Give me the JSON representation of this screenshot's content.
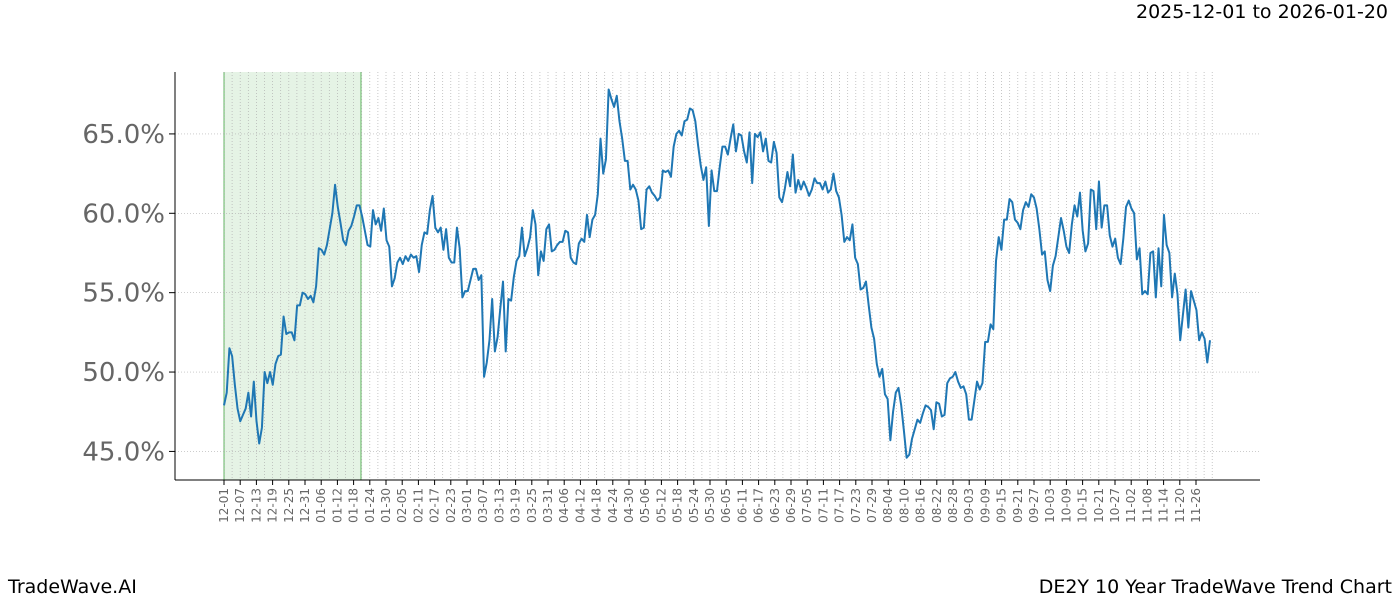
{
  "header": {
    "date_range": "2025-12-01 to 2026-01-20"
  },
  "footer": {
    "brand": "TradeWave.AI",
    "chart_title": "DE2Y 10 Year TradeWave Trend Chart"
  },
  "colors": {
    "line": "#1f77b4",
    "highlight": "#2ca02c",
    "grid": "#b0b0b0",
    "axis": "#000000",
    "tick_text": "#666666"
  },
  "chart_data": {
    "type": "line",
    "title": "",
    "xlabel": "",
    "ylabel": "",
    "ylim": [
      43.2,
      68.9
    ],
    "yticks": [
      45,
      50,
      55,
      60,
      65
    ],
    "ytick_labels": [
      "45.0%",
      "50.0%",
      "55.0%",
      "60.0%",
      "65.0%"
    ],
    "grid": true,
    "highlight_range": [
      "12-01",
      "01-20"
    ],
    "x_labels": [
      "12-01",
      "12-07",
      "12-13",
      "12-19",
      "12-25",
      "12-31",
      "01-06",
      "01-12",
      "01-18",
      "01-24",
      "01-30",
      "02-05",
      "02-11",
      "02-17",
      "02-23",
      "03-01",
      "03-07",
      "03-13",
      "03-19",
      "03-25",
      "03-31",
      "04-06",
      "04-12",
      "04-18",
      "04-24",
      "04-30",
      "05-06",
      "05-12",
      "05-18",
      "05-24",
      "05-30",
      "06-05",
      "06-11",
      "06-17",
      "06-23",
      "06-29",
      "07-05",
      "07-11",
      "07-17",
      "07-23",
      "07-29",
      "08-04",
      "08-10",
      "08-16",
      "08-22",
      "08-28",
      "09-03",
      "09-09",
      "09-15",
      "09-21",
      "09-27",
      "10-03",
      "10-09",
      "10-15",
      "10-21",
      "10-27",
      "11-02",
      "11-08",
      "11-14",
      "11-20",
      "11-26"
    ],
    "series": [
      {
        "values": [
          47.9,
          48.7,
          51.5,
          51.0,
          49.2,
          47.7,
          46.9,
          47.3,
          47.7,
          48.7,
          47.2,
          49.4,
          46.9,
          45.5,
          46.5,
          50.0,
          49.3,
          50.0,
          49.2,
          50.5,
          51.0,
          51.1,
          53.5,
          52.4,
          52.5,
          52.5,
          52.0,
          54.2,
          54.2,
          55.0,
          54.9,
          54.6,
          54.8,
          54.4,
          55.4,
          57.8,
          57.7,
          57.4,
          58.0,
          59.0,
          60.0,
          61.8,
          60.4,
          59.4,
          58.3,
          58.0,
          58.9,
          59.2,
          59.8,
          60.5,
          60.5,
          59.8,
          58.9,
          58.0,
          57.9,
          60.2,
          59.3,
          59.7,
          58.9,
          60.3,
          58.3,
          57.9,
          55.4,
          55.9,
          56.9,
          57.2,
          56.8,
          57.3,
          57.0,
          57.4,
          57.2,
          57.3,
          56.3,
          58.0,
          58.8,
          58.7,
          60.2,
          61.1,
          59.1,
          58.8,
          59.1,
          57.7,
          59.0,
          57.2,
          56.9,
          56.9,
          59.1,
          57.8,
          54.7,
          55.1,
          55.1,
          55.8,
          56.5,
          56.5,
          55.8,
          56.1,
          49.7,
          50.6,
          52.0,
          54.6,
          51.3,
          52.2,
          54.0,
          55.7,
          51.3,
          54.6,
          54.5,
          56.0,
          57.0,
          57.3,
          59.1,
          57.3,
          57.8,
          58.5,
          60.2,
          59.3,
          56.1,
          57.6,
          57.0,
          59.0,
          59.3,
          57.6,
          57.7,
          58.0,
          58.2,
          58.2,
          58.9,
          58.8,
          57.2,
          56.9,
          56.8,
          58.1,
          58.4,
          58.2,
          59.9,
          58.5,
          59.6,
          59.9,
          61.2,
          64.7,
          62.5,
          63.4,
          67.8,
          67.2,
          66.7,
          67.4,
          65.8,
          64.7,
          63.3,
          63.3,
          61.5,
          61.8,
          61.5,
          60.8,
          59.0,
          59.1,
          61.5,
          61.7,
          61.3,
          61.1,
          60.8,
          61.0,
          62.7,
          62.6,
          62.7,
          62.3,
          64.2,
          65.0,
          65.2,
          64.9,
          65.8,
          65.9,
          66.6,
          66.5,
          65.8,
          64.3,
          63.0,
          62.1,
          62.9,
          59.2,
          62.7,
          61.4,
          61.4,
          62.9,
          64.2,
          64.2,
          63.7,
          64.7,
          65.6,
          63.9,
          65.0,
          64.9,
          63.9,
          63.2,
          65.1,
          61.9,
          65.0,
          64.8,
          65.1,
          63.9,
          64.7,
          63.3,
          63.2,
          64.5,
          63.8,
          61.0,
          60.7,
          61.5,
          62.6,
          61.7,
          63.7,
          61.3,
          62.1,
          61.5,
          62.0,
          61.6,
          61.1,
          61.5,
          62.2,
          61.9,
          61.9,
          61.5,
          62.0,
          61.3,
          61.5,
          62.5,
          61.4,
          61.0,
          59.9,
          58.2,
          58.5,
          58.3,
          59.3,
          57.2,
          56.8,
          55.2,
          55.3,
          55.7,
          54.2,
          52.8,
          52.1,
          50.5,
          49.7,
          50.2,
          48.6,
          48.3,
          45.7,
          47.5,
          48.7,
          49.0,
          47.9,
          46.3,
          44.6,
          44.8,
          45.8,
          46.4,
          47.0,
          46.8,
          47.4,
          47.9,
          47.8,
          47.6,
          46.4,
          48.1,
          48.0,
          47.2,
          47.3,
          49.3,
          49.6,
          49.7,
          50.0,
          49.4,
          49.0,
          49.1,
          48.6,
          47.0,
          47.0,
          48.2,
          49.4,
          48.9,
          49.3,
          51.9,
          51.9,
          53.0,
          52.7,
          57.0,
          58.5,
          57.7,
          59.6,
          59.6,
          60.9,
          60.7,
          59.6,
          59.4,
          59.0,
          60.2,
          60.7,
          60.4,
          61.2,
          61.0,
          60.3,
          59.0,
          57.4,
          57.6,
          55.8,
          55.1,
          56.7,
          57.3,
          58.5,
          59.7,
          58.9,
          57.9,
          57.5,
          59.3,
          60.5,
          59.8,
          61.3,
          58.9,
          57.6,
          58.1,
          61.5,
          61.4,
          59.0,
          62.0,
          59.1,
          60.5,
          60.5,
          58.6,
          57.9,
          58.4,
          57.2,
          56.8,
          58.4,
          60.4,
          60.8,
          60.3,
          60.0,
          57.1,
          57.8,
          54.9,
          55.1,
          54.9,
          57.5,
          57.6,
          54.7,
          57.8,
          55.4,
          59.9,
          58.0,
          57.5,
          54.7,
          56.2,
          54.9,
          52.0,
          53.6,
          55.2,
          52.8,
          55.1,
          54.5,
          53.9,
          52.0,
          52.5,
          52.1,
          50.6,
          52.0
        ]
      }
    ]
  }
}
